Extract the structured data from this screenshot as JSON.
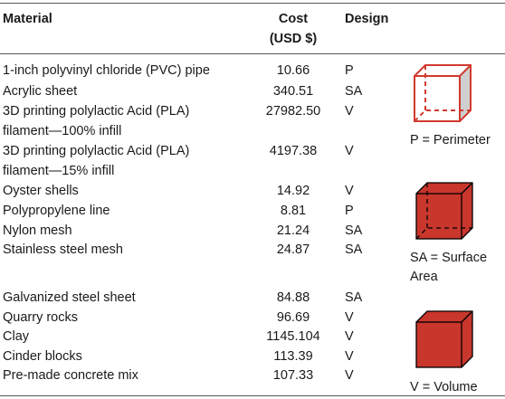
{
  "headers": {
    "material": "Material",
    "cost_line1": "Cost",
    "cost_line2": "(USD $)",
    "design": "Design"
  },
  "rows": [
    {
      "material": [
        "1-inch polyvinyl chloride (PVC) pipe"
      ],
      "cost": "10.66",
      "design": "P"
    },
    {
      "material": [
        "Acrylic sheet"
      ],
      "cost": "340.51",
      "design": "SA"
    },
    {
      "material": [
        "3D printing polylactic Acid (PLA)",
        "filament—100% infill"
      ],
      "cost": "27982.50",
      "design": "V"
    },
    {
      "material": [
        "3D printing polylactic Acid (PLA)",
        "filament—15% infill"
      ],
      "cost": "4197.38",
      "design": "V"
    },
    {
      "material": [
        "Oyster shells"
      ],
      "cost": "14.92",
      "design": "V"
    },
    {
      "material": [
        "Polypropylene line"
      ],
      "cost": "8.81",
      "design": "P"
    },
    {
      "material": [
        "Nylon mesh"
      ],
      "cost": "21.24",
      "design": "SA"
    },
    {
      "material": [
        "Stainless steel mesh"
      ],
      "cost": "24.87",
      "design": "SA"
    },
    {
      "material": [
        "Galvanized steel sheet"
      ],
      "cost": "84.88",
      "design": "SA"
    },
    {
      "material": [
        "Quarry rocks"
      ],
      "cost": "96.69",
      "design": "V"
    },
    {
      "material": [
        "Clay"
      ],
      "cost": "1145.104",
      "design": "V"
    },
    {
      "material": [
        "Cinder blocks"
      ],
      "cost": "113.39",
      "design": "V"
    },
    {
      "material": [
        "Pre-made concrete mix"
      ],
      "cost": "107.33",
      "design": "V"
    }
  ],
  "legend": {
    "perimeter": "P = Perimeter",
    "surface_area_line1": "SA = Surface",
    "surface_area_line2": "Area",
    "volume": "V = Volume"
  },
  "colors": {
    "cube_red": "#c8362c",
    "cube_red_dark": "#8e1f18",
    "cube_outline": "#d13a2e",
    "cube_gray": "#cfcfcf"
  }
}
